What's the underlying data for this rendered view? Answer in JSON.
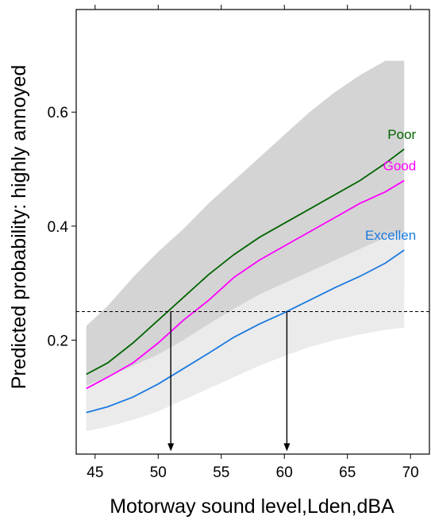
{
  "chart_data": {
    "type": "line",
    "title": "",
    "xlabel": "Motorway sound level,Lden,dBA",
    "ylabel": "Predicted probability: highly annoyed",
    "xlim": [
      43.5,
      71.5
    ],
    "ylim": [
      0.0,
      0.78
    ],
    "xticks": [
      45,
      50,
      55,
      60,
      65,
      70
    ],
    "yticks": [
      0.2,
      0.4,
      0.6
    ],
    "ytick_labels": [
      "0.2",
      "0.4",
      "0.6"
    ],
    "grid": false,
    "legend": "none",
    "series": [
      {
        "name": "Poor",
        "color": "#006400",
        "band_color": "#d4d4d4",
        "x": [
          44.3,
          46,
          48,
          50,
          52,
          54,
          56,
          58,
          60,
          62,
          64,
          66,
          68,
          69.5
        ],
        "y": [
          0.14,
          0.16,
          0.195,
          0.235,
          0.275,
          0.315,
          0.35,
          0.38,
          0.405,
          0.43,
          0.455,
          0.48,
          0.51,
          0.535
        ],
        "lower": [
          0.09,
          0.105,
          0.13,
          0.16,
          0.19,
          0.215,
          0.235,
          0.25,
          0.262,
          0.272,
          0.28,
          0.285,
          0.29,
          0.29
        ],
        "upper": [
          0.225,
          0.26,
          0.31,
          0.355,
          0.395,
          0.44,
          0.48,
          0.52,
          0.56,
          0.6,
          0.635,
          0.665,
          0.69,
          0.69
        ]
      },
      {
        "name": "Good",
        "color": "#ff00ff",
        "x": [
          44.3,
          46,
          48,
          50,
          52,
          54,
          56,
          58,
          60,
          62,
          64,
          66,
          68,
          69.5
        ],
        "y": [
          0.115,
          0.135,
          0.16,
          0.195,
          0.235,
          0.27,
          0.31,
          0.34,
          0.365,
          0.39,
          0.415,
          0.44,
          0.46,
          0.48
        ]
      },
      {
        "name": "Excellen",
        "color": "#1a7adf",
        "band_color": "#ebebeb",
        "x": [
          44.3,
          46,
          48,
          50,
          52,
          54,
          56,
          58,
          60,
          62,
          64,
          66,
          68,
          69.5
        ],
        "y": [
          0.073,
          0.083,
          0.1,
          0.123,
          0.15,
          0.177,
          0.205,
          0.228,
          0.248,
          0.27,
          0.292,
          0.312,
          0.335,
          0.358
        ],
        "lower": [
          0.04,
          0.048,
          0.06,
          0.075,
          0.095,
          0.115,
          0.135,
          0.155,
          0.172,
          0.188,
          0.2,
          0.21,
          0.218,
          0.222
        ],
        "upper": [
          0.12,
          0.135,
          0.155,
          0.175,
          0.2,
          0.228,
          0.255,
          0.28,
          0.3,
          0.32,
          0.34,
          0.36,
          0.38,
          0.39
        ]
      }
    ],
    "threshold": {
      "y": 0.25,
      "style": "dashed"
    },
    "arrows": [
      {
        "x": 51.0,
        "from_y": 0.25,
        "to_y": 0.005
      },
      {
        "x": 60.2,
        "from_y": 0.25,
        "to_y": 0.005
      }
    ]
  }
}
